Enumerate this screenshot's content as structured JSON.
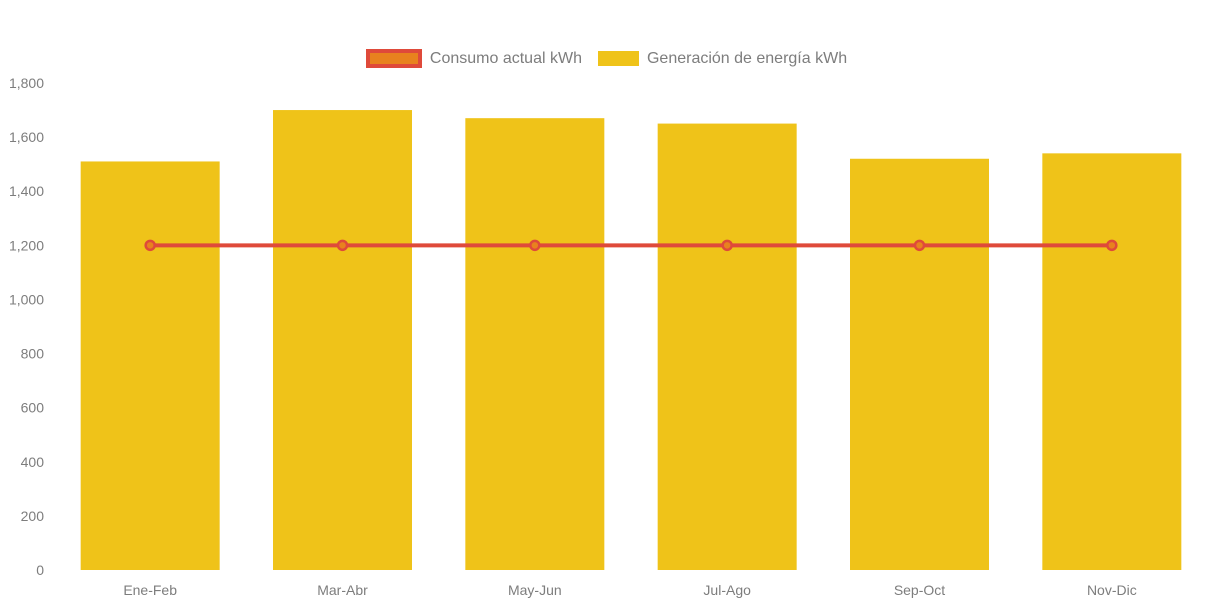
{
  "legend": {
    "items": [
      {
        "label": "Consumo actual kWh",
        "marker_fill": "#E8821E",
        "marker_border": "#DF4A3A"
      },
      {
        "label": "Generación de energía kWh",
        "marker_fill": "#EFC319"
      }
    ]
  },
  "chart_data": {
    "type": "bar",
    "subtype": "vertical-bars-with-line-overlay",
    "title": "",
    "xlabel": "",
    "ylabel": "",
    "categories": [
      "Ene-Feb",
      "Mar-Abr",
      "May-Jun",
      "Jul-Ago",
      "Sep-Oct",
      "Nov-Dic"
    ],
    "series": [
      {
        "name": "Consumo actual kWh",
        "type": "line",
        "color": "#DF4A3A",
        "marker_fill": "#E8821E",
        "values": [
          1200,
          1200,
          1200,
          1200,
          1200,
          1200
        ]
      },
      {
        "name": "Generación de energía kWh",
        "type": "bar",
        "color": "#EFC319",
        "values": [
          1510,
          1700,
          1670,
          1650,
          1520,
          1540
        ]
      }
    ],
    "ylim": [
      0,
      1800
    ],
    "y_ticks": {
      "values": [
        0,
        200,
        400,
        600,
        800,
        1000,
        1200,
        1400,
        1600,
        1800
      ],
      "labels": [
        "0",
        "200",
        "400",
        "600",
        "800",
        "1,000",
        "1,200",
        "1,400",
        "1,600",
        "1,800"
      ]
    },
    "grid": false,
    "legend_position": "top",
    "axis_text_color": "#7d7d7d"
  }
}
